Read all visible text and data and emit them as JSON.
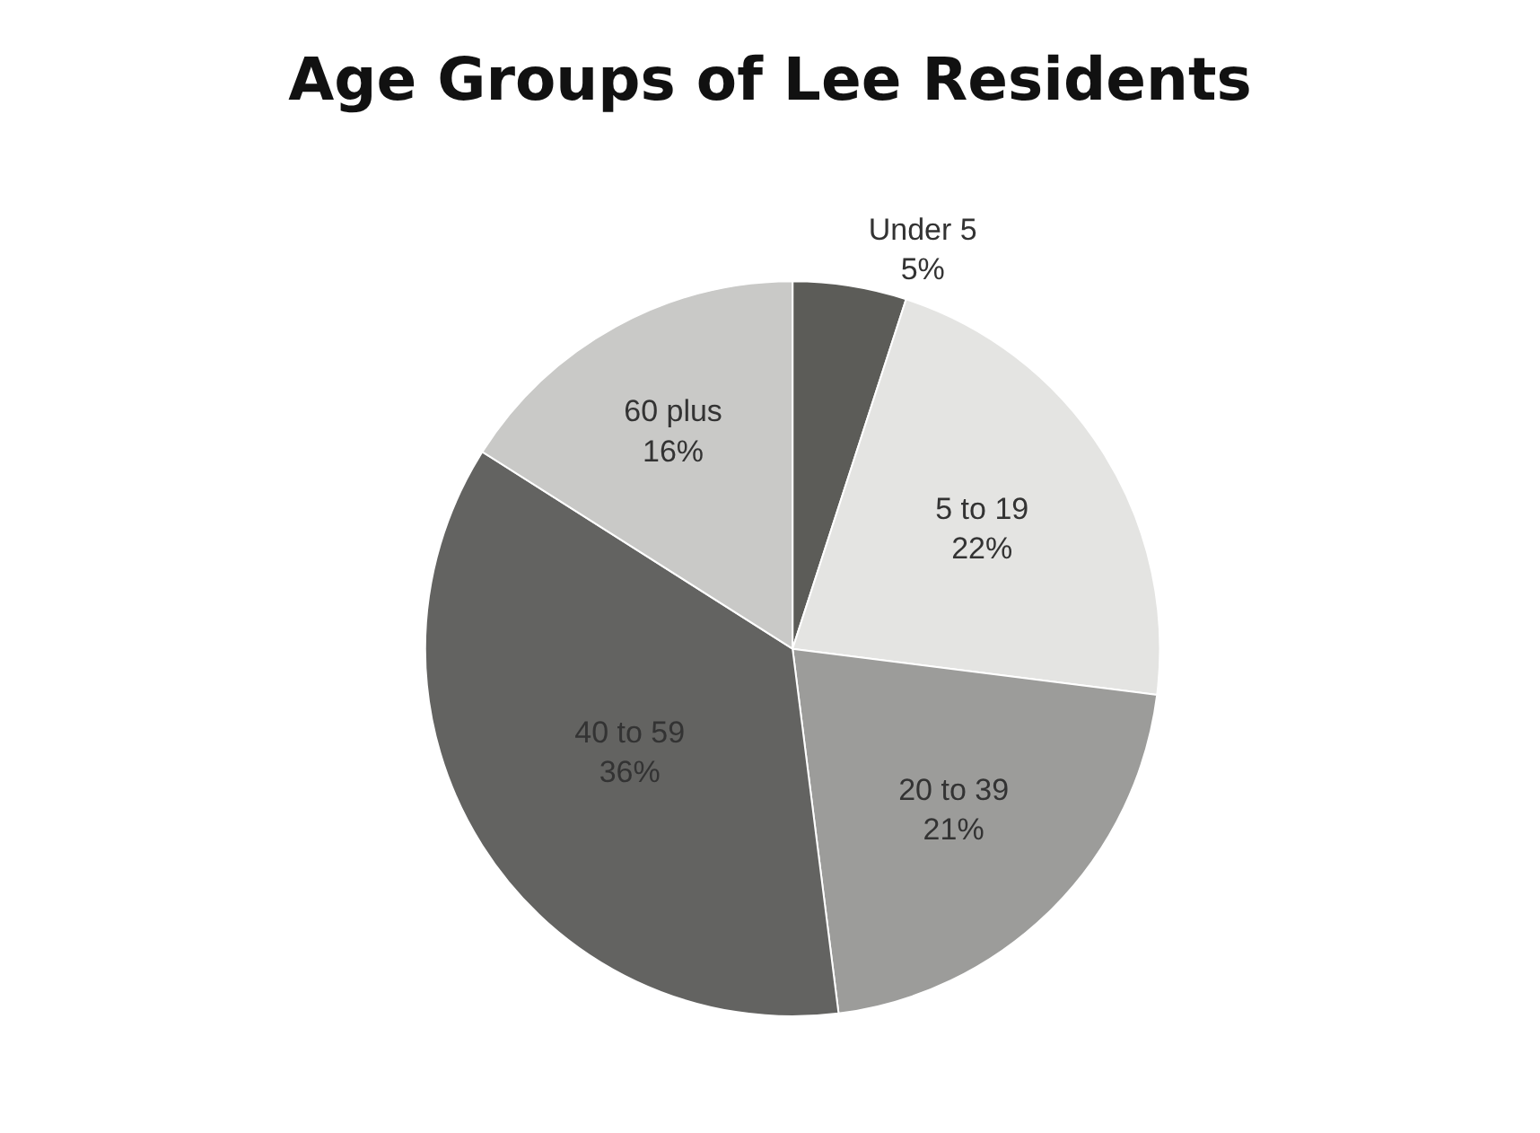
{
  "chart_data": {
    "type": "pie",
    "title": "Age Groups of Lee Residents",
    "categories": [
      "Under 5",
      "5 to 19",
      "20 to 39",
      "40 to 59",
      "60 plus"
    ],
    "values": [
      5,
      22,
      21,
      36,
      16
    ],
    "value_labels": [
      "5%",
      "22%",
      "21%",
      "36%",
      "16%"
    ],
    "colors": [
      "#5c5c58",
      "#e4e4e2",
      "#9c9c9a",
      "#636361",
      "#c9c9c7"
    ],
    "legend": false
  }
}
